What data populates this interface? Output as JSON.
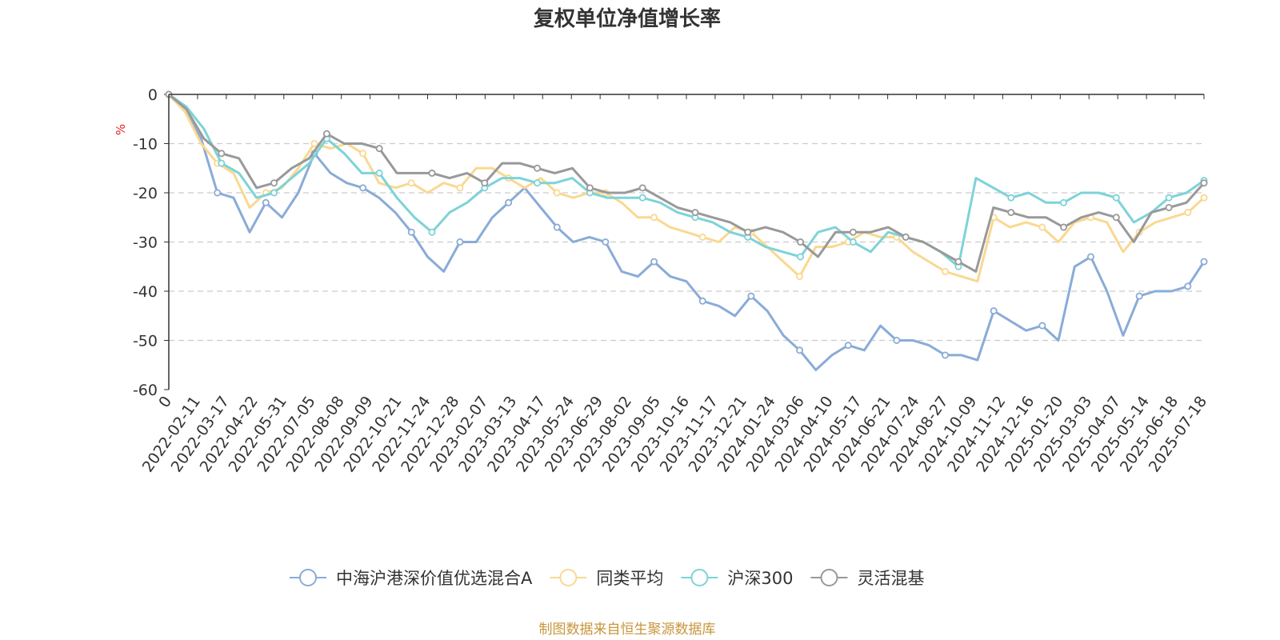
{
  "chart_data": {
    "type": "line",
    "title": "复权单位净值增长率",
    "ylabel": "%",
    "ylim": [
      -60,
      0
    ],
    "yticks": [
      0,
      -10,
      -20,
      -30,
      -40,
      -50,
      -60
    ],
    "x_tick_labels": [
      "0",
      "2022-02-11",
      "2022-03-17",
      "2022-04-22",
      "2022-05-31",
      "2022-07-05",
      "2022-08-08",
      "2022-09-09",
      "2022-10-21",
      "2022-11-24",
      "2022-12-28",
      "2023-02-07",
      "2023-03-13",
      "2023-04-17",
      "2023-05-24",
      "2023-06-29",
      "2023-08-02",
      "2023-09-05",
      "2023-10-16",
      "2023-11-17",
      "2023-12-21",
      "2024-01-24",
      "2024-03-06",
      "2024-04-10",
      "2024-05-17",
      "2024-06-21",
      "2024-07-24",
      "2024-08-27",
      "2024-10-09",
      "2024-11-12",
      "2024-12-16",
      "2025-01-20",
      "2025-03-03",
      "2025-04-07",
      "2025-05-14",
      "2025-06-18",
      "2025-07-18"
    ],
    "grid": "horizontal-dashed",
    "legend_position": "bottom",
    "source_note": "制图数据来自恒生聚源数据库",
    "series": [
      {
        "name": "中海沪港深价值优选混合A",
        "color": "#8aabd8",
        "values": [
          0,
          -3.5,
          -9,
          -20,
          -21,
          -28,
          -22,
          -25,
          -20,
          -12,
          -16,
          -18,
          -19,
          -21,
          -24,
          -28,
          -33,
          -36,
          -30,
          -30,
          -25,
          -22,
          -19,
          -23,
          -27,
          -30,
          -29,
          -30,
          -36,
          -37,
          -34,
          -37,
          -38,
          -42,
          -43,
          -45,
          -41,
          -44,
          -49,
          -52,
          -56,
          -53,
          -51,
          -52,
          -47,
          -50,
          -50,
          -51,
          -53,
          -53,
          -54,
          -44,
          -46,
          -48,
          -47,
          -50,
          -35,
          -33,
          -40,
          -49,
          -41,
          -40,
          -40,
          -39,
          -34
        ]
      },
      {
        "name": "同类平均",
        "color": "#fad891",
        "values": [
          0,
          -3.5,
          -10,
          -14,
          -16,
          -23,
          -20,
          -19,
          -15,
          -10,
          -11,
          -10,
          -12,
          -18,
          -19,
          -18,
          -20,
          -18,
          -19,
          -15,
          -15,
          -17,
          -19,
          -17,
          -20,
          -21,
          -20,
          -20,
          -22,
          -25,
          -25,
          -27,
          -28,
          -29,
          -30,
          -27,
          -28,
          -31,
          -34,
          -37,
          -31,
          -31,
          -30,
          -28,
          -29,
          -29,
          -32,
          -34,
          -36,
          -37,
          -38,
          -25,
          -27,
          -26,
          -27,
          -30,
          -26,
          -25,
          -26,
          -32,
          -28,
          -26,
          -25,
          -24,
          -21
        ]
      },
      {
        "name": "沪深300",
        "color": "#7dd3d8",
        "values": [
          0,
          -2.5,
          -7,
          -14,
          -16,
          -21,
          -20,
          -17,
          -14,
          -9,
          -12,
          -16,
          -16,
          -21,
          -25,
          -28,
          -24,
          -22,
          -19,
          -17,
          -17,
          -18,
          -18,
          -17,
          -20,
          -21,
          -21,
          -21,
          -22,
          -24,
          -25,
          -26,
          -28,
          -29,
          -31,
          -32,
          -33,
          -28,
          -27,
          -30,
          -32,
          -28,
          -29,
          -30,
          -32,
          -35,
          -17,
          -19,
          -21,
          -20,
          -22,
          -22,
          -20,
          -20,
          -21,
          -26,
          -24,
          -21,
          -20,
          -17.5
        ]
      },
      {
        "name": "灵活混基",
        "color": "#999999",
        "values": [
          0,
          -3,
          -9,
          -12,
          -13,
          -19,
          -18,
          -15,
          -13,
          -8,
          -10,
          -10,
          -11,
          -16,
          -16,
          -16,
          -17,
          -16,
          -18,
          -14,
          -14,
          -15,
          -16,
          -15,
          -19,
          -20,
          -20,
          -19,
          -21,
          -23,
          -24,
          -25,
          -26,
          -28,
          -27,
          -28,
          -30,
          -33,
          -28,
          -28,
          -28,
          -27,
          -29,
          -30,
          -32,
          -34,
          -36,
          -23,
          -24,
          -25,
          -25,
          -27,
          -25,
          -24,
          -25,
          -30,
          -24,
          -23,
          -22,
          -18
        ]
      }
    ]
  }
}
